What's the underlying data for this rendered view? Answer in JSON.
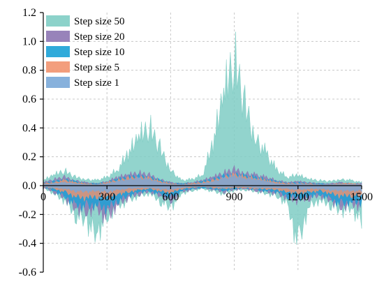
{
  "chart_data": {
    "type": "area",
    "title": "",
    "xlabel": "",
    "ylabel": "",
    "xlim": [
      0,
      1500
    ],
    "ylim": [
      -0.6,
      1.2
    ],
    "x_ticks": [
      "0",
      "300",
      "600",
      "900",
      "1200",
      "1500"
    ],
    "y_ticks": [
      "1.2",
      "1.0",
      "0.8",
      "0.6",
      "0.4",
      "0.2",
      "0.0",
      "-0.2",
      "-0.4",
      "-0.6"
    ],
    "grid": true,
    "legend_position": "top-left",
    "x": [
      0,
      50,
      100,
      150,
      200,
      250,
      300,
      350,
      400,
      450,
      500,
      550,
      600,
      650,
      700,
      750,
      800,
      850,
      900,
      950,
      1000,
      1050,
      1100,
      1150,
      1200,
      1250,
      1300,
      1350,
      1400,
      1450,
      1500
    ],
    "series": [
      {
        "name": "Step size 50",
        "color": "#7fcdc4",
        "upper": [
          0.05,
          0.1,
          0.14,
          0.08,
          0.06,
          0.05,
          0.08,
          0.15,
          0.3,
          0.45,
          0.55,
          0.35,
          0.15,
          0.05,
          0.06,
          0.1,
          0.4,
          0.85,
          1.2,
          0.75,
          0.45,
          0.3,
          0.15,
          0.08,
          0.1,
          0.06,
          0.05,
          0.04,
          0.06,
          0.05,
          0.03
        ],
        "lower": [
          -0.02,
          -0.08,
          -0.15,
          -0.28,
          -0.35,
          -0.48,
          -0.3,
          -0.2,
          -0.15,
          -0.1,
          -0.08,
          -0.15,
          -0.22,
          -0.08,
          -0.05,
          -0.03,
          -0.06,
          -0.08,
          -0.05,
          -0.04,
          -0.06,
          -0.08,
          -0.1,
          -0.18,
          -0.58,
          -0.2,
          -0.15,
          -0.18,
          -0.25,
          -0.22,
          -0.35
        ]
      },
      {
        "name": "Step size 20",
        "color": "#8d75b3",
        "upper": [
          0.03,
          0.06,
          0.08,
          0.05,
          0.03,
          0.02,
          0.04,
          0.08,
          0.1,
          0.12,
          0.1,
          0.06,
          0.03,
          0.02,
          0.03,
          0.05,
          0.08,
          0.12,
          0.15,
          0.12,
          0.1,
          0.08,
          0.05,
          0.03,
          0.04,
          0.03,
          0.02,
          0.02,
          0.03,
          0.02,
          0.02
        ],
        "lower": [
          -0.02,
          -0.06,
          -0.12,
          -0.22,
          -0.25,
          -0.22,
          -0.32,
          -0.18,
          -0.12,
          -0.08,
          -0.06,
          -0.1,
          -0.15,
          -0.06,
          -0.04,
          -0.02,
          -0.04,
          -0.06,
          -0.04,
          -0.03,
          -0.05,
          -0.06,
          -0.08,
          -0.12,
          -0.15,
          -0.12,
          -0.1,
          -0.14,
          -0.2,
          -0.18,
          -0.2
        ]
      },
      {
        "name": "Step size 10",
        "color": "#1aa1d6",
        "upper": [
          0.02,
          0.04,
          0.06,
          0.04,
          0.02,
          0.02,
          0.03,
          0.06,
          0.08,
          0.09,
          0.08,
          0.05,
          0.02,
          0.02,
          0.02,
          0.04,
          0.06,
          0.09,
          0.11,
          0.09,
          0.08,
          0.06,
          0.04,
          0.02,
          0.03,
          0.02,
          0.02,
          0.01,
          0.02,
          0.02,
          0.01
        ],
        "lower": [
          -0.01,
          -0.05,
          -0.1,
          -0.18,
          -0.2,
          -0.18,
          -0.22,
          -0.14,
          -0.1,
          -0.06,
          -0.05,
          -0.08,
          -0.12,
          -0.05,
          -0.03,
          -0.02,
          -0.03,
          -0.05,
          -0.03,
          -0.02,
          -0.04,
          -0.05,
          -0.06,
          -0.1,
          -0.12,
          -0.1,
          -0.08,
          -0.12,
          -0.18,
          -0.15,
          -0.16
        ]
      },
      {
        "name": "Step size 5",
        "color": "#f2946f",
        "upper": [
          0.02,
          0.03,
          0.05,
          0.03,
          0.02,
          0.01,
          0.03,
          0.05,
          0.07,
          0.08,
          0.07,
          0.04,
          0.02,
          0.01,
          0.02,
          0.03,
          0.05,
          0.08,
          0.1,
          0.08,
          0.07,
          0.05,
          0.03,
          0.02,
          0.02,
          0.02,
          0.01,
          0.01,
          0.02,
          0.02,
          0.01
        ],
        "lower": [
          -0.01,
          -0.03,
          -0.06,
          -0.1,
          -0.12,
          -0.1,
          -0.12,
          -0.08,
          -0.06,
          -0.04,
          -0.03,
          -0.05,
          -0.07,
          -0.03,
          -0.02,
          -0.01,
          -0.02,
          -0.03,
          -0.02,
          -0.02,
          -0.03,
          -0.03,
          -0.04,
          -0.06,
          -0.07,
          -0.06,
          -0.05,
          -0.07,
          -0.1,
          -0.09,
          -0.1
        ]
      },
      {
        "name": "Step size 1",
        "color": "#7aa8d8",
        "upper": [
          0.01,
          0.02,
          0.03,
          0.02,
          0.01,
          0.01,
          0.02,
          0.04,
          0.06,
          0.07,
          0.06,
          0.03,
          0.01,
          0.01,
          0.01,
          0.02,
          0.04,
          0.07,
          0.09,
          0.07,
          0.06,
          0.04,
          0.02,
          0.01,
          0.02,
          0.01,
          0.01,
          0.01,
          0.01,
          0.01,
          0.01
        ],
        "lower": [
          -0.01,
          -0.02,
          -0.03,
          -0.05,
          -0.06,
          -0.05,
          -0.06,
          -0.04,
          -0.03,
          -0.02,
          -0.02,
          -0.03,
          -0.04,
          -0.02,
          -0.01,
          -0.01,
          -0.01,
          -0.02,
          -0.01,
          -0.01,
          -0.02,
          -0.02,
          -0.02,
          -0.03,
          -0.04,
          -0.03,
          -0.03,
          -0.04,
          -0.05,
          -0.05,
          -0.05
        ]
      }
    ]
  }
}
